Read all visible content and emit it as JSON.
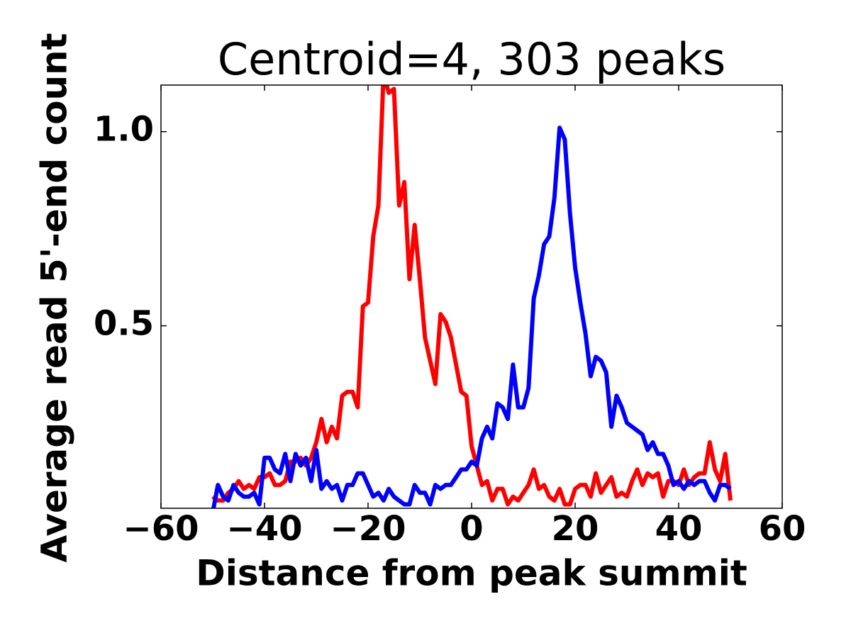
{
  "chart_data": {
    "type": "line",
    "title": "Centroid=4, 303 peaks",
    "x_label": "Distance from peak summit",
    "y_label": "Average read 5'-end count",
    "x": [
      -50,
      -49,
      -48,
      -47,
      -46,
      -45,
      -44,
      -43,
      -42,
      -41,
      -40,
      -39,
      -38,
      -37,
      -36,
      -35,
      -34,
      -33,
      -32,
      -31,
      -30,
      -29,
      -28,
      -27,
      -26,
      -25,
      -24,
      -23,
      -22,
      -21,
      -20,
      -19,
      -18,
      -17,
      -16,
      -15,
      -14,
      -13,
      -12,
      -11,
      -10,
      -9,
      -8,
      -7,
      -6,
      -5,
      -4,
      -3,
      -2,
      -1,
      0,
      1,
      2,
      3,
      4,
      5,
      6,
      7,
      8,
      9,
      10,
      11,
      12,
      13,
      14,
      15,
      16,
      17,
      18,
      19,
      20,
      21,
      22,
      23,
      24,
      25,
      26,
      27,
      28,
      29,
      30,
      31,
      32,
      33,
      34,
      35,
      36,
      37,
      38,
      39,
      40,
      41,
      42,
      43,
      44,
      45,
      46,
      47,
      48,
      49,
      50
    ],
    "series": [
      {
        "color": "#ff0000",
        "values": [
          0.06,
          0.05,
          0.05,
          0.07,
          0.08,
          0.1,
          0.08,
          0.09,
          0.08,
          0.11,
          0.11,
          0.12,
          0.09,
          0.09,
          0.1,
          0.15,
          0.15,
          0.16,
          0.14,
          0.16,
          0.2,
          0.26,
          0.2,
          0.24,
          0.21,
          0.32,
          0.33,
          0.33,
          0.29,
          0.55,
          0.56,
          0.73,
          0.81,
          1.15,
          1.1,
          1.11,
          0.81,
          0.87,
          0.62,
          0.76,
          0.62,
          0.47,
          0.41,
          0.35,
          0.53,
          0.51,
          0.47,
          0.4,
          0.33,
          0.32,
          0.19,
          0.14,
          0.09,
          0.1,
          0.05,
          0.08,
          0.08,
          0.04,
          0.06,
          0.05,
          0.07,
          0.09,
          0.13,
          0.08,
          0.09,
          0.06,
          0.05,
          0.08,
          0.04,
          0.04,
          0.08,
          0.09,
          0.09,
          0.06,
          0.12,
          0.07,
          0.09,
          0.11,
          0.06,
          0.07,
          0.06,
          0.1,
          0.13,
          0.09,
          0.12,
          0.11,
          0.12,
          0.06,
          0.1,
          0.1,
          0.09,
          0.13,
          0.09,
          0.11,
          0.12,
          0.12,
          0.2,
          0.13,
          0.1,
          0.17,
          0.05
        ]
      },
      {
        "color": "#0000ff",
        "values": [
          0.02,
          0.09,
          0.06,
          0.05,
          0.09,
          0.07,
          0.06,
          0.06,
          0.07,
          0.04,
          0.16,
          0.16,
          0.13,
          0.12,
          0.17,
          0.1,
          0.17,
          0.14,
          0.16,
          0.1,
          0.18,
          0.08,
          0.1,
          0.08,
          0.09,
          0.05,
          0.09,
          0.09,
          0.12,
          0.12,
          0.09,
          0.06,
          0.07,
          0.05,
          0.08,
          0.06,
          0.05,
          0.04,
          0.04,
          0.09,
          0.07,
          0.07,
          0.04,
          0.09,
          0.08,
          0.09,
          0.09,
          0.11,
          0.13,
          0.13,
          0.15,
          0.14,
          0.21,
          0.24,
          0.21,
          0.3,
          0.29,
          0.26,
          0.4,
          0.29,
          0.29,
          0.34,
          0.57,
          0.63,
          0.71,
          0.73,
          0.83,
          1.01,
          0.98,
          0.79,
          0.65,
          0.56,
          0.48,
          0.37,
          0.42,
          0.41,
          0.38,
          0.24,
          0.32,
          0.29,
          0.25,
          0.24,
          0.23,
          0.22,
          0.18,
          0.2,
          0.17,
          0.17,
          0.14,
          0.09,
          0.1,
          0.08,
          0.1,
          0.09,
          0.1,
          0.1,
          0.07,
          0.05,
          0.09,
          0.09,
          0.08
        ]
      }
    ],
    "xlim": [
      -60,
      60
    ],
    "xticks": [
      {
        "value": -60,
        "label": "−60"
      },
      {
        "value": -40,
        "label": "−40"
      },
      {
        "value": -20,
        "label": "−20"
      },
      0,
      20,
      40,
      60
    ],
    "ylim": [
      0.03,
      1.12
    ],
    "yticks": [
      0.5,
      {
        "value": 1,
        "label": "1.0"
      }
    ]
  }
}
